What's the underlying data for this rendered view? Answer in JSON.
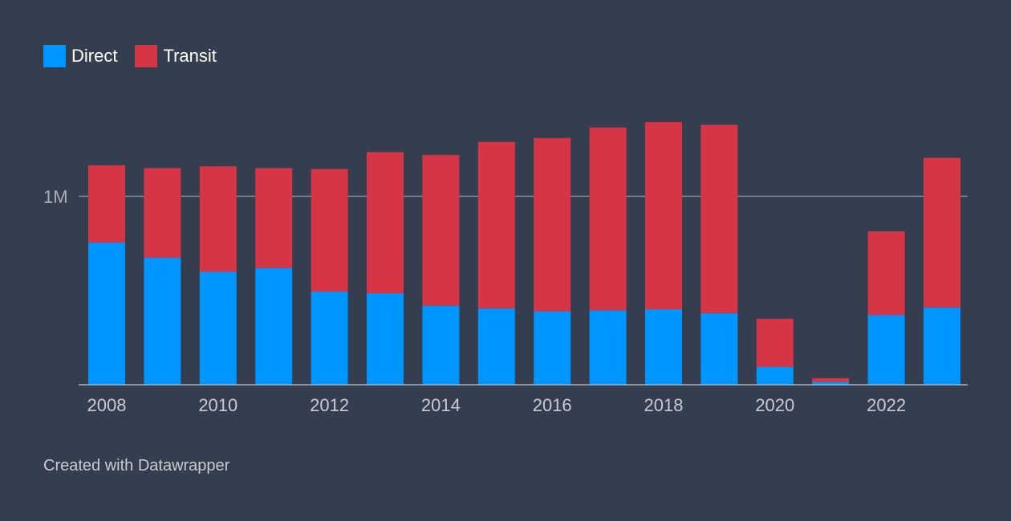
{
  "legend": {
    "direct_label": "Direct",
    "transit_label": "Transit"
  },
  "footer": {
    "credit": "Created with Datawrapper"
  },
  "colors": {
    "background": "#343e4e",
    "direct": "#0096ff",
    "transit": "#d63545",
    "gridline": "#8a9099"
  },
  "chart_data": {
    "type": "bar",
    "stacked": true,
    "categories": [
      "2008",
      "2009",
      "2010",
      "2011",
      "2012",
      "2013",
      "2014",
      "2015",
      "2016",
      "2017",
      "2018",
      "2019",
      "2020",
      "2021",
      "2022",
      "2023"
    ],
    "x_tick_labels": [
      "2008",
      "2010",
      "2012",
      "2014",
      "2016",
      "2018",
      "2020",
      "2022"
    ],
    "series": [
      {
        "name": "Direct",
        "values": [
          755000,
          675000,
          600000,
          620000,
          495000,
          485000,
          420000,
          405000,
          390000,
          395000,
          400000,
          380000,
          95000,
          15000,
          370000,
          410000
        ]
      },
      {
        "name": "Transit",
        "values": [
          410000,
          475000,
          560000,
          530000,
          650000,
          750000,
          800000,
          885000,
          920000,
          970000,
          995000,
          1000000,
          255000,
          20000,
          445000,
          795000
        ]
      }
    ],
    "ylim": [
      0,
      1400000
    ],
    "y_tick_labels": [
      {
        "value": 1000000,
        "label": "1M"
      }
    ],
    "grid": true
  }
}
